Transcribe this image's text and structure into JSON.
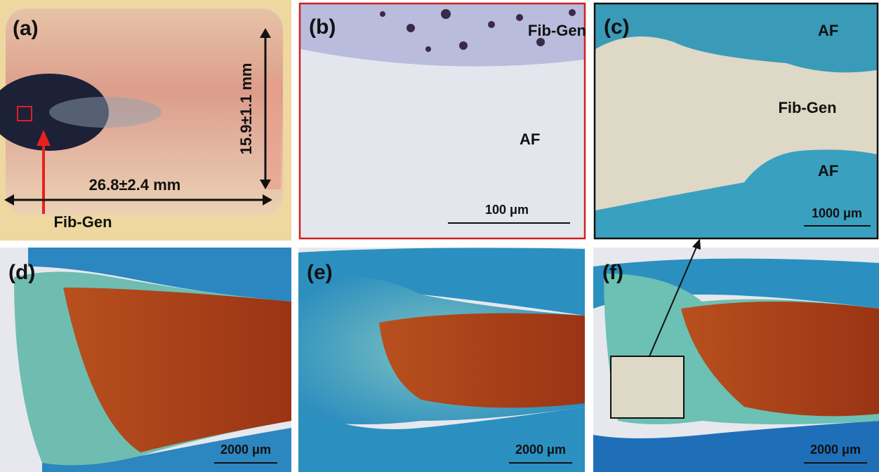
{
  "panels": [
    {
      "label": "(a)",
      "annotations": [
        "15.9±1.1 mm",
        "26.8±2.4 mm",
        "Fib-Gen"
      ]
    },
    {
      "label": "(b)",
      "annotations": [
        "Fib-Gen",
        "AF"
      ],
      "scale_bar": "100 μm"
    },
    {
      "label": "(c)",
      "annotations": [
        "AF",
        "Fib-Gen",
        "AF"
      ],
      "scale_bar": "1000 μm"
    },
    {
      "label": "(d)",
      "scale_bar": "2000 μm"
    },
    {
      "label": "(e)",
      "scale_bar": "2000 μm"
    },
    {
      "label": "(f)",
      "scale_bar": "2000 μm"
    }
  ]
}
